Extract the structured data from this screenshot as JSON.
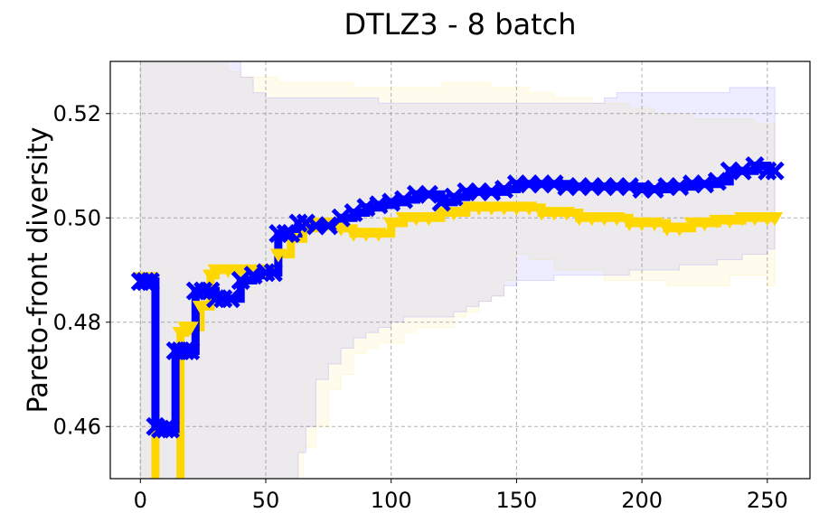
{
  "chart_data": {
    "type": "line",
    "title": "DTLZ3 - 8 batch",
    "xlabel": "",
    "ylabel": "Pareto-front diversity",
    "xlim": [
      -12,
      267
    ],
    "ylim": [
      0.45,
      0.53
    ],
    "xticks": [
      0,
      50,
      100,
      150,
      200,
      250
    ],
    "xtick_labels": [
      "0",
      "50",
      "100",
      "150",
      "200",
      "250"
    ],
    "yticks": [
      0.46,
      0.48,
      0.5,
      0.52
    ],
    "ytick_labels": [
      "0.46",
      "0.48",
      "0.50",
      "0.52"
    ],
    "grid": true,
    "legend": "none",
    "series": [
      {
        "color": "#ffd700",
        "marker": "triangle-down",
        "x": [
          0,
          2,
          4,
          6,
          8,
          10,
          12,
          14,
          16,
          18,
          20,
          24,
          28,
          30,
          35,
          40,
          45,
          50,
          55,
          60,
          65,
          70,
          75,
          80,
          85,
          90,
          95,
          100,
          105,
          110,
          115,
          120,
          125,
          130,
          135,
          140,
          145,
          150,
          155,
          160,
          165,
          170,
          175,
          180,
          185,
          190,
          195,
          200,
          205,
          210,
          215,
          220,
          225,
          230,
          235,
          240,
          245,
          250,
          253
        ],
        "y": [
          0.4885,
          0.4885,
          0.4885,
          0.44,
          0.44,
          0.44,
          0.44,
          0.442,
          0.478,
          0.479,
          0.479,
          0.483,
          0.489,
          0.49,
          0.49,
          0.49,
          0.49,
          0.49,
          0.493,
          0.496,
          0.498,
          0.499,
          0.499,
          0.498,
          0.497,
          0.497,
          0.497,
          0.499,
          0.5,
          0.5,
          0.5,
          0.501,
          0.501,
          0.502,
          0.502,
          0.502,
          0.502,
          0.502,
          0.502,
          0.501,
          0.501,
          0.501,
          0.5,
          0.5,
          0.5,
          0.5,
          0.499,
          0.499,
          0.499,
          0.498,
          0.498,
          0.499,
          0.499,
          0.4995,
          0.4995,
          0.5,
          0.5,
          0.5,
          0.5
        ],
        "band_upper": [
          0.531,
          0.531,
          0.531,
          0.531,
          0.531,
          0.531,
          0.531,
          0.531,
          0.531,
          0.531,
          0.531,
          0.531,
          0.531,
          0.531,
          0.528,
          0.527,
          0.527,
          0.527,
          0.526,
          0.526,
          0.526,
          0.526,
          0.526,
          0.526,
          0.525,
          0.525,
          0.525,
          0.525,
          0.525,
          0.525,
          0.525,
          0.526,
          0.526,
          0.526,
          0.526,
          0.525,
          0.525,
          0.525,
          0.524,
          0.524,
          0.523,
          0.523,
          0.523,
          0.522,
          0.522,
          0.522,
          0.521,
          0.521,
          0.52,
          0.52,
          0.52,
          0.519,
          0.519,
          0.519,
          0.519,
          0.519,
          0.518,
          0.518,
          0.518
        ],
        "band_lower": [
          0.45,
          0.45,
          0.45,
          0.45,
          0.45,
          0.45,
          0.45,
          0.45,
          0.45,
          0.45,
          0.45,
          0.45,
          0.45,
          0.45,
          0.45,
          0.45,
          0.45,
          0.45,
          0.45,
          0.45,
          0.456,
          0.46,
          0.467,
          0.47,
          0.474,
          0.475,
          0.476,
          0.476,
          0.478,
          0.479,
          0.479,
          0.479,
          0.481,
          0.482,
          0.484,
          0.485,
          0.488,
          0.493,
          0.492,
          0.492,
          0.49,
          0.49,
          0.49,
          0.49,
          0.488,
          0.488,
          0.488,
          0.488,
          0.488,
          0.487,
          0.487,
          0.487,
          0.487,
          0.487,
          0.489,
          0.489,
          0.489,
          0.487,
          0.487
        ]
      },
      {
        "color": "#0000ff",
        "marker": "x",
        "x": [
          0,
          2,
          4,
          6,
          8,
          10,
          12,
          14,
          16,
          18,
          20,
          22,
          25,
          28,
          30,
          33,
          36,
          40,
          45,
          50,
          53,
          55,
          58,
          60,
          63,
          66,
          70,
          75,
          80,
          85,
          90,
          95,
          100,
          105,
          110,
          115,
          120,
          125,
          130,
          135,
          140,
          145,
          150,
          155,
          160,
          165,
          170,
          175,
          180,
          185,
          190,
          195,
          200,
          205,
          210,
          215,
          220,
          225,
          230,
          235,
          240,
          245,
          250,
          253
        ],
        "y": [
          0.4878,
          0.4878,
          0.4878,
          0.46,
          0.4595,
          0.4595,
          0.4595,
          0.4745,
          0.4745,
          0.4745,
          0.4745,
          0.486,
          0.486,
          0.486,
          0.4845,
          0.4845,
          0.4845,
          0.488,
          0.489,
          0.4895,
          0.4895,
          0.497,
          0.497,
          0.497,
          0.499,
          0.499,
          0.4985,
          0.4985,
          0.5,
          0.501,
          0.502,
          0.5025,
          0.503,
          0.5035,
          0.5045,
          0.5045,
          0.503,
          0.504,
          0.505,
          0.505,
          0.505,
          0.5055,
          0.5065,
          0.5065,
          0.5065,
          0.5065,
          0.506,
          0.506,
          0.506,
          0.506,
          0.506,
          0.506,
          0.5055,
          0.5055,
          0.506,
          0.506,
          0.5065,
          0.5065,
          0.507,
          0.509,
          0.509,
          0.51,
          0.509,
          0.509
        ],
        "band_upper": [
          0.531,
          0.531,
          0.531,
          0.531,
          0.531,
          0.531,
          0.531,
          0.531,
          0.531,
          0.531,
          0.531,
          0.531,
          0.531,
          0.531,
          0.531,
          0.531,
          0.531,
          0.527,
          0.524,
          0.523,
          0.523,
          0.523,
          0.523,
          0.523,
          0.523,
          0.523,
          0.523,
          0.523,
          0.523,
          0.523,
          0.523,
          0.522,
          0.522,
          0.522,
          0.522,
          0.522,
          0.522,
          0.522,
          0.522,
          0.522,
          0.522,
          0.522,
          0.522,
          0.522,
          0.522,
          0.522,
          0.522,
          0.522,
          0.522,
          0.523,
          0.524,
          0.524,
          0.524,
          0.524,
          0.524,
          0.524,
          0.524,
          0.524,
          0.524,
          0.525,
          0.525,
          0.525,
          0.525,
          0.525
        ],
        "band_lower": [
          0.45,
          0.45,
          0.45,
          0.45,
          0.45,
          0.45,
          0.45,
          0.45,
          0.45,
          0.45,
          0.45,
          0.45,
          0.45,
          0.45,
          0.45,
          0.45,
          0.45,
          0.45,
          0.45,
          0.45,
          0.45,
          0.45,
          0.45,
          0.45,
          0.455,
          0.46,
          0.469,
          0.472,
          0.475,
          0.477,
          0.478,
          0.479,
          0.48,
          0.481,
          0.481,
          0.481,
          0.481,
          0.482,
          0.483,
          0.484,
          0.485,
          0.487,
          0.488,
          0.488,
          0.488,
          0.489,
          0.489,
          0.489,
          0.489,
          0.489,
          0.489,
          0.49,
          0.49,
          0.49,
          0.49,
          0.491,
          0.491,
          0.491,
          0.492,
          0.492,
          0.493,
          0.493,
          0.494,
          0.494
        ]
      }
    ]
  }
}
